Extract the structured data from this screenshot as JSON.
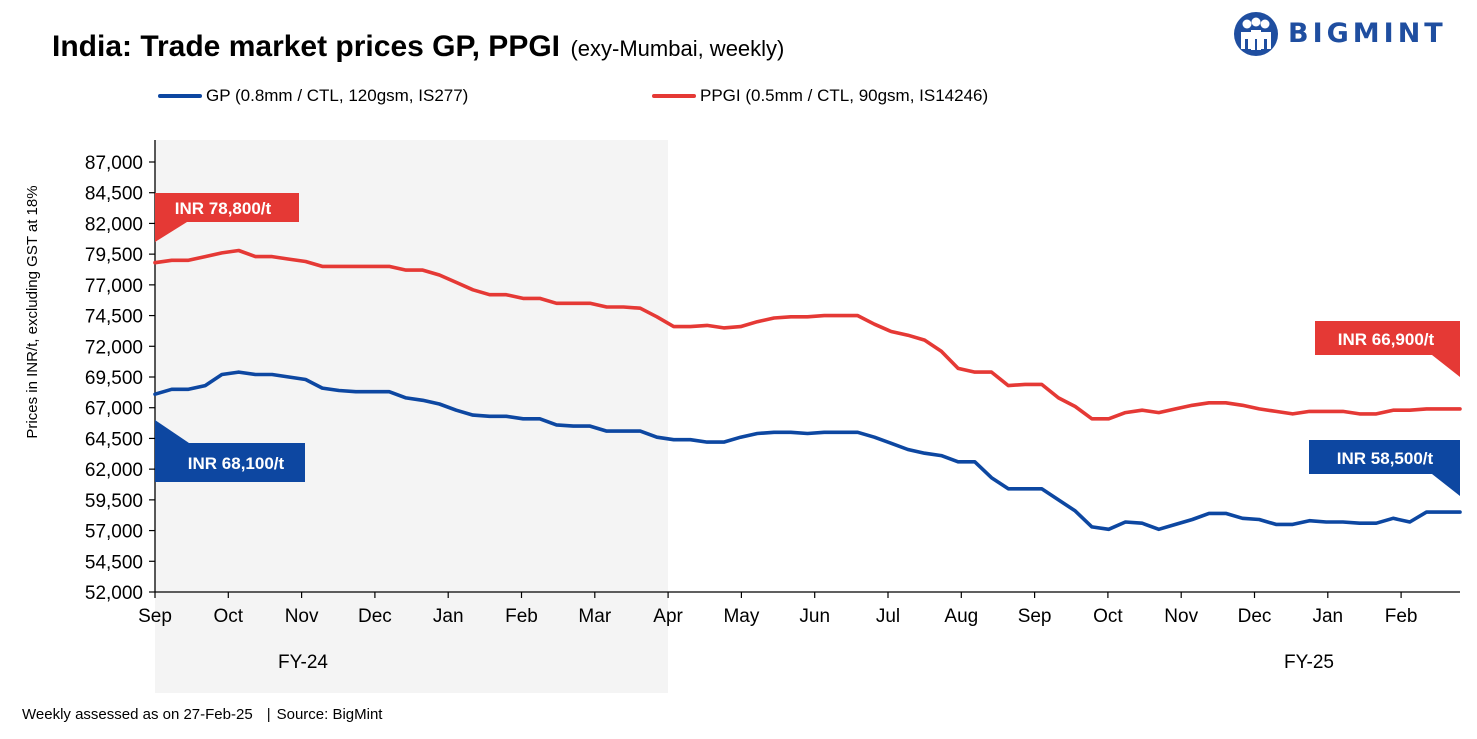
{
  "header": {
    "title": "India: Trade market prices GP, PPGI",
    "subtitle": "(exy-Mumbai, weekly)"
  },
  "logo": {
    "text": "BIGMINT",
    "color": "#1f4ea0",
    "icon": "people-group-icon"
  },
  "legend": [
    {
      "label": "GP (0.8mm / CTL, 120gsm, IS277)",
      "color": "#0d47a1"
    },
    {
      "label": "PPGI (0.5mm / CTL, 90gsm, IS14246)",
      "color": "#e53935"
    }
  ],
  "footer": {
    "note": "Weekly assessed as on 27-Feb-25",
    "source": "Source: BigMint"
  },
  "chart_data": {
    "type": "line",
    "ylabel": "Prices in INR/t, excluding GST at 18%",
    "ylim": [
      52000,
      87000
    ],
    "yticks": [
      "52,000",
      "54,500",
      "57,000",
      "59,500",
      "62,000",
      "64,500",
      "67,000",
      "69,500",
      "72,000",
      "74,500",
      "77,000",
      "79,500",
      "82,000",
      "84,500",
      "87,000"
    ],
    "x_ticks": [
      "Sep",
      "Oct",
      "Nov",
      "Dec",
      "Jan",
      "Feb",
      "Mar",
      "Apr",
      "May",
      "Jun",
      "Jul",
      "Aug",
      "Sep",
      "Oct",
      "Nov",
      "Dec",
      "Jan",
      "Feb"
    ],
    "fiscal_years": [
      {
        "label": "FY-24",
        "shaded": true
      },
      {
        "label": "FY-25",
        "shaded": false
      }
    ],
    "grid": false,
    "shade_color": "#f4f4f4",
    "series": [
      {
        "name": "GP (0.8mm / CTL, 120gsm, IS277)",
        "color": "#0d47a1",
        "values": [
          68100,
          68500,
          68500,
          68800,
          69700,
          69900,
          69700,
          69700,
          69500,
          69300,
          68600,
          68400,
          68300,
          68300,
          68300,
          67800,
          67600,
          67300,
          66800,
          66400,
          66300,
          66300,
          66100,
          66100,
          65600,
          65500,
          65500,
          65100,
          65100,
          65100,
          64600,
          64400,
          64400,
          64200,
          64200,
          64600,
          64900,
          65000,
          65000,
          64900,
          65000,
          65000,
          65000,
          64600,
          64100,
          63600,
          63300,
          63100,
          62600,
          62600,
          61300,
          60400,
          60400,
          60400,
          59500,
          58600,
          57300,
          57100,
          57700,
          57600,
          57100,
          57500,
          57900,
          58400,
          58400,
          58000,
          57900,
          57500,
          57500,
          57800,
          57700,
          57700,
          57600,
          57600,
          58000,
          57700,
          58500,
          58500,
          58500
        ],
        "label": "INR 68,100/t",
        "end_label": "INR 58,500/t"
      },
      {
        "name": "PPGI (0.5mm / CTL, 90gsm, IS14246)",
        "color": "#e53935",
        "values": [
          78800,
          79000,
          79000,
          79300,
          79600,
          79800,
          79300,
          79300,
          79100,
          78900,
          78500,
          78500,
          78500,
          78500,
          78500,
          78200,
          78200,
          77800,
          77200,
          76600,
          76200,
          76200,
          75900,
          75900,
          75500,
          75500,
          75500,
          75200,
          75200,
          75100,
          74400,
          73600,
          73600,
          73700,
          73500,
          73600,
          74000,
          74300,
          74400,
          74400,
          74500,
          74500,
          74500,
          73800,
          73200,
          72900,
          72500,
          71600,
          70200,
          69900,
          69900,
          68800,
          68900,
          68900,
          67800,
          67100,
          66100,
          66100,
          66600,
          66800,
          66600,
          66900,
          67200,
          67400,
          67400,
          67200,
          66900,
          66700,
          66500,
          66700,
          66700,
          66700,
          66500,
          66500,
          66800,
          66800,
          66900,
          66900,
          66900
        ],
        "label": "INR 78,800/t",
        "end_label": "INR 66,900/t"
      }
    ]
  }
}
